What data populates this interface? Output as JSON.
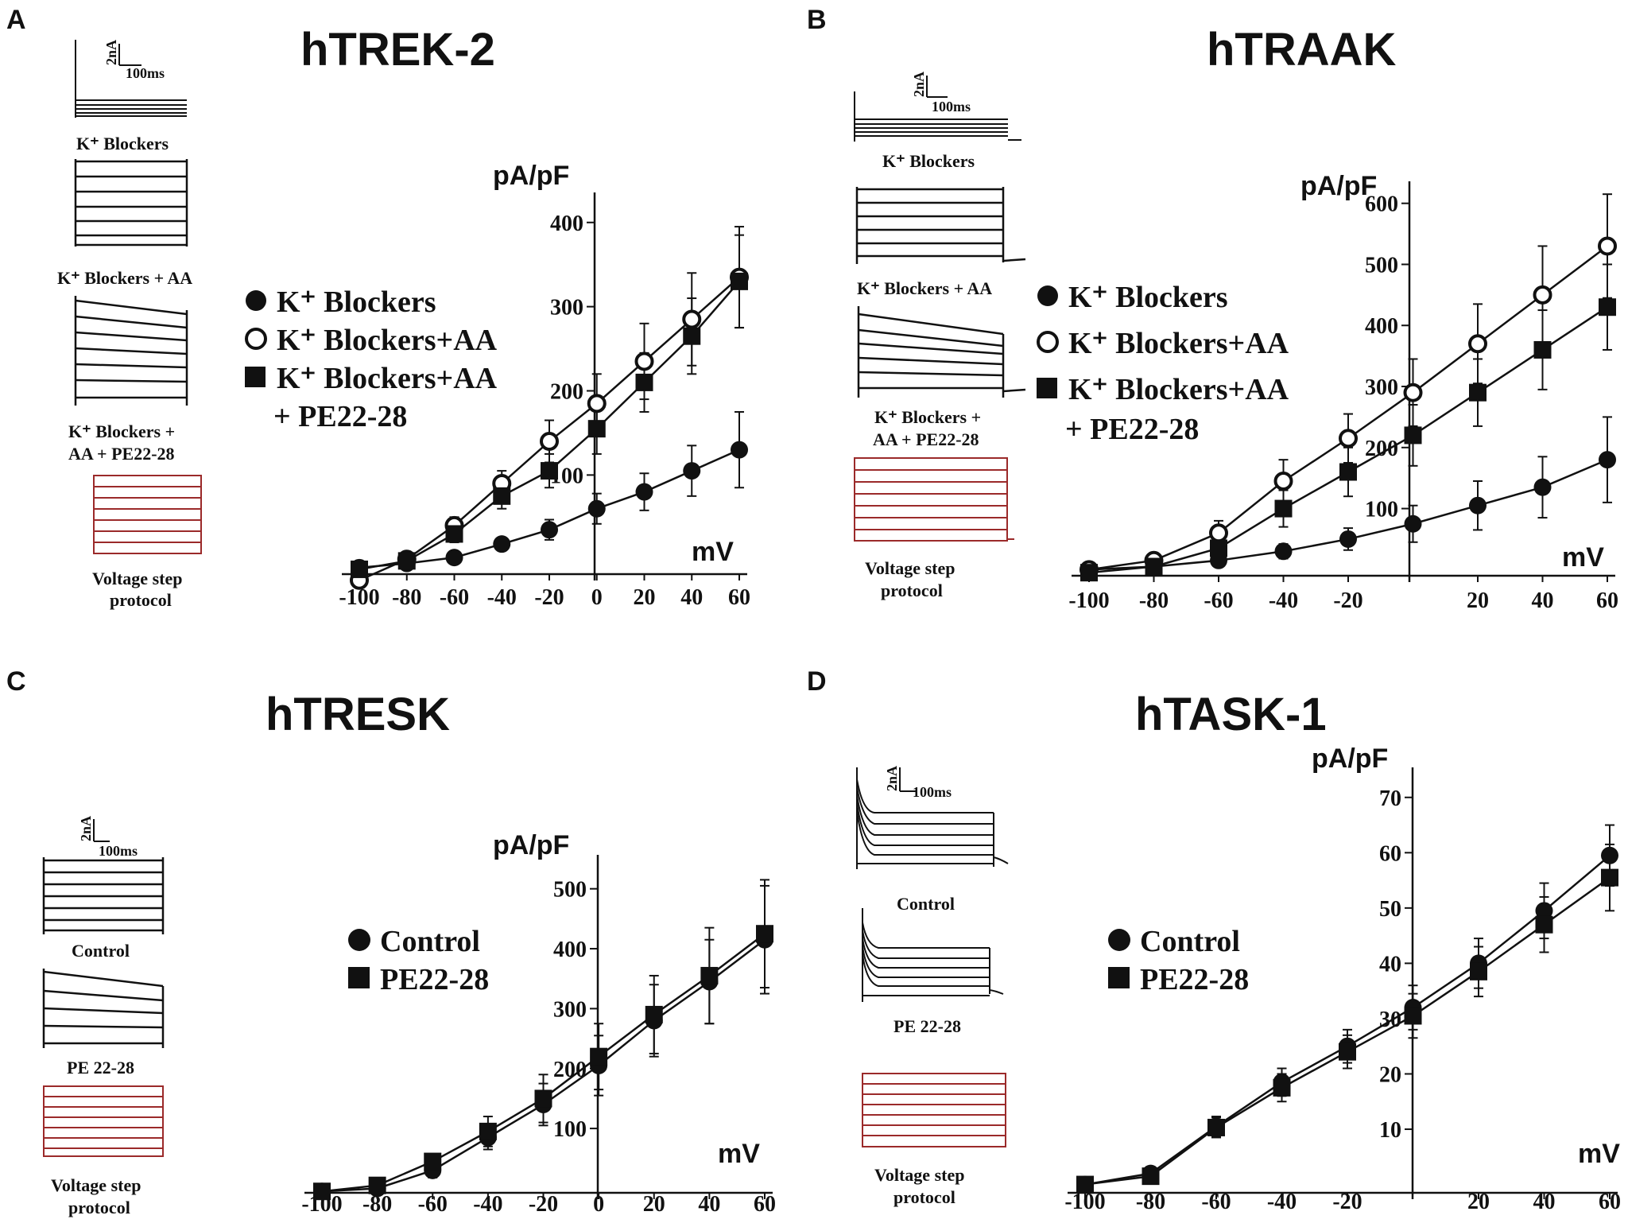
{
  "figure": {
    "panels": [
      "A",
      "B",
      "C",
      "D"
    ]
  },
  "chart_data": [
    {
      "type": "line",
      "panel": "A",
      "title": "hTREK-2",
      "xlabel": "mV",
      "ylabel": "pA/pF",
      "x": [
        -100,
        -80,
        -60,
        -40,
        -20,
        0,
        20,
        40,
        60
      ],
      "x_ticks": [
        "-100",
        "-80",
        "-60",
        "-40",
        "-20",
        "0",
        "20",
        "40",
        "60"
      ],
      "y_ticks": [
        100,
        200,
        300,
        400
      ],
      "ylim": [
        -30,
        430
      ],
      "legend_entries": [
        "K⁺ Blockers",
        "K⁺ Blockers+AA",
        "K⁺ Blockers+AA",
        "+ PE22-28"
      ],
      "series": [
        {
          "name": "K+ Blockers",
          "marker": "filled-circle",
          "values": [
            -10,
            -5,
            2,
            18,
            35,
            60,
            80,
            105,
            130
          ],
          "errors": [
            6,
            5,
            5,
            6,
            12,
            18,
            22,
            30,
            45
          ]
        },
        {
          "name": "K+ Blockers+AA",
          "marker": "open-circle",
          "values": [
            -25,
            0,
            40,
            90,
            140,
            185,
            235,
            285,
            335
          ],
          "errors": [
            8,
            6,
            10,
            15,
            25,
            35,
            45,
            55,
            60
          ]
        },
        {
          "name": "K+ Blockers+AA + PE22-28",
          "marker": "filled-square",
          "values": [
            -12,
            -2,
            30,
            75,
            105,
            155,
            210,
            265,
            330
          ],
          "errors": [
            8,
            6,
            10,
            15,
            20,
            30,
            35,
            45,
            55
          ]
        }
      ],
      "insets": {
        "scale_current": "2nA",
        "scale_time": "100ms",
        "trace_labels": [
          "K⁺ Blockers",
          "K⁺ Blockers + AA",
          "K⁺ Blockers +",
          "AA + PE22-28"
        ],
        "protocol_label_1": "Voltage step",
        "protocol_label_2": "protocol"
      }
    },
    {
      "type": "line",
      "panel": "B",
      "title": "hTRAAK",
      "xlabel": "mV",
      "ylabel": "pA/pF",
      "x": [
        -100,
        -80,
        -60,
        -40,
        -20,
        0,
        20,
        40,
        60
      ],
      "x_ticks": [
        "-100",
        "-80",
        "-60",
        "-40",
        "-20",
        "20",
        "40",
        "60"
      ],
      "y_ticks": [
        100,
        200,
        300,
        400,
        500,
        600
      ],
      "ylim": [
        -10,
        640
      ],
      "legend_entries": [
        "K⁺ Blockers",
        "K⁺ Blockers+AA",
        "K⁺ Blockers+AA",
        "+ PE22-28"
      ],
      "series": [
        {
          "name": "K+ Blockers",
          "marker": "filled-circle",
          "values": [
            0,
            5,
            15,
            30,
            50,
            75,
            105,
            135,
            180
          ],
          "errors": [
            5,
            5,
            8,
            12,
            18,
            30,
            40,
            50,
            70
          ]
        },
        {
          "name": "K+ Blockers+AA",
          "marker": "open-circle",
          "values": [
            0,
            15,
            60,
            145,
            215,
            290,
            370,
            450,
            530
          ],
          "errors": [
            6,
            8,
            20,
            35,
            40,
            55,
            65,
            80,
            85
          ]
        },
        {
          "name": "K+ Blockers+AA + PE22-28",
          "marker": "filled-square",
          "values": [
            -5,
            5,
            35,
            100,
            160,
            220,
            290,
            360,
            430
          ],
          "errors": [
            6,
            8,
            20,
            30,
            40,
            50,
            55,
            65,
            70
          ]
        }
      ],
      "insets": {
        "scale_current": "2nA",
        "scale_time": "100ms",
        "trace_labels": [
          "K⁺ Blockers",
          "K⁺ Blockers + AA",
          "K⁺ Blockers +",
          "AA + PE22-28"
        ],
        "protocol_label_1": "Voltage step",
        "protocol_label_2": "protocol"
      }
    },
    {
      "type": "line",
      "panel": "C",
      "title": "hTRESK",
      "xlabel": "mV",
      "ylabel": "pA/pF",
      "x": [
        -100,
        -80,
        -60,
        -40,
        -20,
        0,
        20,
        40,
        60
      ],
      "x_ticks": [
        "-100",
        "-80",
        "-60",
        "-40",
        "-20",
        "0",
        "20",
        "40",
        "60"
      ],
      "y_ticks": [
        100,
        200,
        300,
        400,
        500
      ],
      "ylim": [
        -10,
        550
      ],
      "legend_entries": [
        "Control",
        "PE22-28"
      ],
      "series": [
        {
          "name": "Control",
          "marker": "filled-circle",
          "values": [
            -5,
            0,
            30,
            85,
            140,
            205,
            280,
            345,
            415
          ],
          "errors": [
            6,
            8,
            12,
            20,
            35,
            50,
            60,
            70,
            90
          ]
        },
        {
          "name": "PE22-28",
          "marker": "filled-square",
          "values": [
            -5,
            5,
            45,
            95,
            150,
            220,
            290,
            355,
            425
          ],
          "errors": [
            6,
            8,
            12,
            25,
            40,
            55,
            65,
            80,
            90
          ]
        }
      ],
      "insets": {
        "scale_current": "2nA",
        "scale_time": "100ms",
        "trace_labels": [
          "Control",
          "PE 22-28"
        ],
        "protocol_label_1": "Voltage step",
        "protocol_label_2": "protocol"
      }
    },
    {
      "type": "line",
      "panel": "D",
      "title": "hTASK-1",
      "xlabel": "mV",
      "ylabel": "pA/pF",
      "x": [
        -100,
        -80,
        -60,
        -40,
        -20,
        0,
        20,
        40,
        60
      ],
      "x_ticks": [
        "-100",
        "-80",
        "-60",
        "-40",
        "-20",
        "20",
        "40",
        "60"
      ],
      "y_ticks": [
        10,
        20,
        30,
        40,
        50,
        60,
        70
      ],
      "ylim": [
        -1.5,
        75
      ],
      "legend_entries": [
        "Control",
        "PE22-28"
      ],
      "series": [
        {
          "name": "Control",
          "marker": "filled-circle",
          "values": [
            0,
            2,
            10.5,
            18.5,
            25,
            32,
            40,
            49.5,
            59.5
          ],
          "errors": [
            0.8,
            1.2,
            1.8,
            2.5,
            3,
            4,
            4.5,
            5,
            5.5
          ]
        },
        {
          "name": "PE22-28",
          "marker": "filled-square",
          "values": [
            0,
            1.5,
            10.3,
            17.5,
            24,
            30.5,
            38.5,
            47,
            55.5
          ],
          "errors": [
            0.8,
            1.2,
            1.8,
            2.5,
            3,
            4,
            4.5,
            5,
            6
          ]
        }
      ],
      "insets": {
        "scale_current": "2nA",
        "scale_time": "100ms",
        "trace_labels": [
          "Control",
          "PE 22-28"
        ],
        "protocol_label_1": "Voltage step",
        "protocol_label_2": "protocol"
      }
    }
  ]
}
